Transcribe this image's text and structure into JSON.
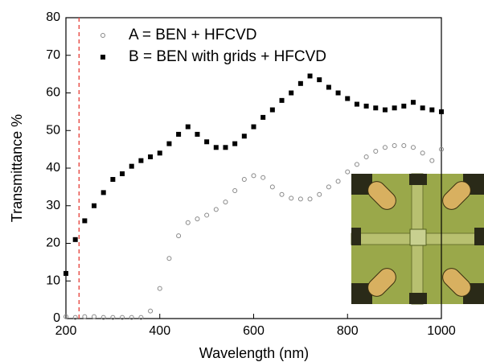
{
  "chart_data": {
    "type": "scatter",
    "xlabel": "Wavelength (nm)",
    "ylabel": "Transmittance %",
    "xlim": [
      200,
      1000
    ],
    "ylim": [
      0,
      80
    ],
    "xticks": [
      200,
      400,
      600,
      800,
      1000
    ],
    "yticks": [
      0,
      10,
      20,
      30,
      40,
      50,
      60,
      70,
      80
    ],
    "vline": {
      "x": 228,
      "color": "#e8504a"
    },
    "series": [
      {
        "name": "A = BEN + HFCVD",
        "marker": "circle-open",
        "color": "#888888",
        "x": [
          200,
          220,
          240,
          260,
          280,
          300,
          320,
          340,
          360,
          380,
          400,
          420,
          440,
          460,
          480,
          500,
          520,
          540,
          560,
          580,
          600,
          620,
          640,
          660,
          680,
          700,
          720,
          740,
          760,
          780,
          800,
          820,
          840,
          860,
          880,
          900,
          920,
          940,
          960,
          980,
          1000
        ],
        "values": [
          0.5,
          0.3,
          0.5,
          0.5,
          0.3,
          0.3,
          0.3,
          0.3,
          0.3,
          2,
          8,
          16,
          22,
          25.5,
          26.5,
          27.5,
          29,
          31,
          34,
          37,
          38,
          37.5,
          35,
          33,
          32,
          31.8,
          31.8,
          33,
          35,
          36.5,
          39,
          41,
          43,
          44.5,
          45.5,
          46,
          46,
          45.5,
          44,
          42,
          45
        ]
      },
      {
        "name": "B = BEN with grids + HFCVD",
        "marker": "square",
        "color": "#000000",
        "x": [
          200,
          220,
          240,
          260,
          280,
          300,
          320,
          340,
          360,
          380,
          400,
          420,
          440,
          460,
          480,
          500,
          520,
          540,
          560,
          580,
          600,
          620,
          640,
          660,
          680,
          700,
          720,
          740,
          760,
          780,
          800,
          820,
          840,
          860,
          880,
          900,
          920,
          940,
          960,
          980,
          1000
        ],
        "values": [
          12,
          21,
          26,
          30,
          33.5,
          37,
          38.5,
          40.5,
          42,
          43,
          44,
          46.5,
          49,
          51,
          49,
          47,
          45.5,
          45.5,
          46.5,
          48.5,
          51,
          53.5,
          55.5,
          58,
          60,
          62.5,
          64.5,
          63.5,
          61.5,
          60,
          58.5,
          57,
          56.5,
          56,
          55.5,
          56,
          56.5,
          57.5,
          56,
          55.5,
          55
        ]
      }
    ]
  }
}
